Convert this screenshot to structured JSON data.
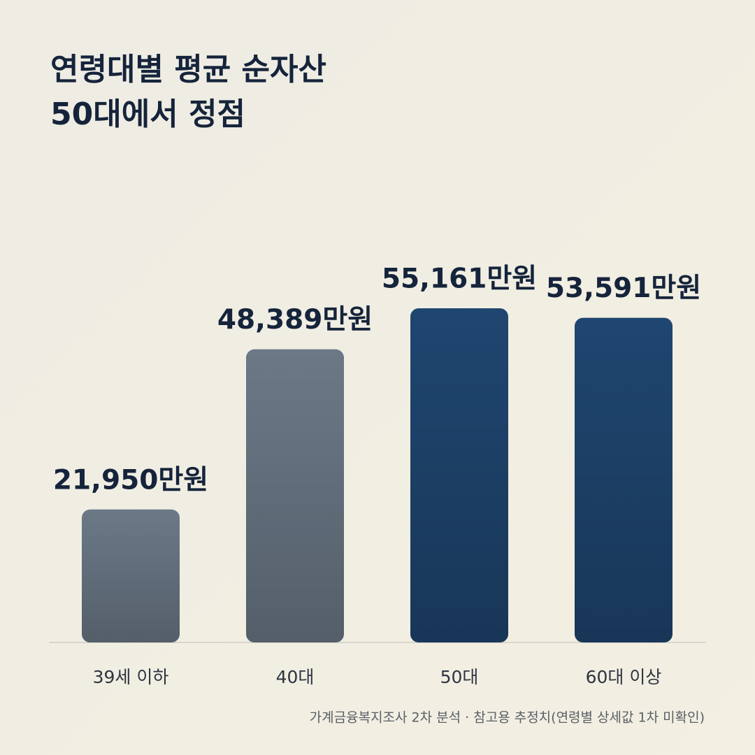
{
  "chart_data": {
    "type": "bar",
    "title": [
      "연령대별 평균 순자산",
      "50대에서 정점"
    ],
    "categories": [
      "39세 이하",
      "40대",
      "50대",
      "60대 이상"
    ],
    "values": [
      21950,
      48389,
      55161,
      53591
    ],
    "value_labels": [
      "21,950만원",
      "48,389만원",
      "55,161만원",
      "53,591만원"
    ],
    "colors": [
      "#6b7987",
      "#6b7987",
      "#1f4670",
      "#1f4670"
    ],
    "source": "가계금융복지조사 2차 분석 · 참고용 추정치(연령별 상세값 1차 미확인)"
  }
}
